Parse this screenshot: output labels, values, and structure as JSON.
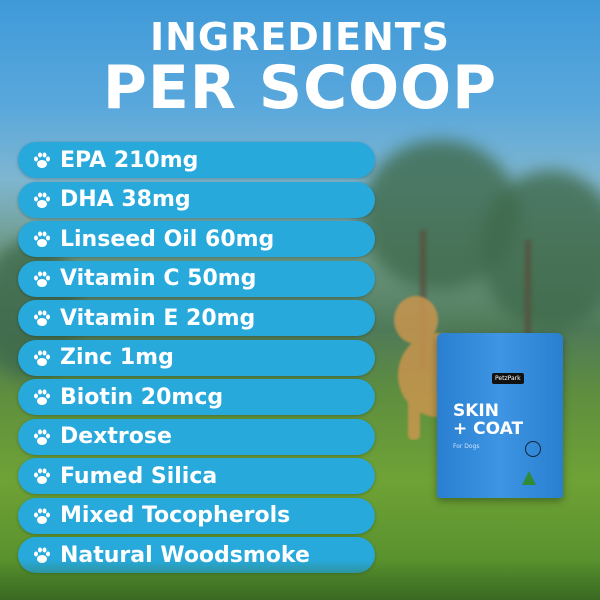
{
  "title": {
    "line1": "INGREDIENTS",
    "line2": "PER SCOOP"
  },
  "ingredients": [
    "EPA 210mg",
    "DHA 38mg",
    "Linseed Oil 60mg",
    "Vitamin C 50mg",
    "Vitamin E 20mg",
    "Zinc 1mg",
    "Biotin 20mcg",
    "Dextrose",
    "Fumed Silica",
    "Mixed Tocopherols",
    "Natural Woodsmoke"
  ],
  "product": {
    "brand": "PetzPark",
    "name_line1": "SKIN",
    "name_line2": "+ COAT",
    "subtitle": "For Dogs"
  },
  "colors": {
    "pill": "#27a9dc",
    "packet": "#3d95e3"
  },
  "icons": {
    "bullet": "paw-icon"
  }
}
